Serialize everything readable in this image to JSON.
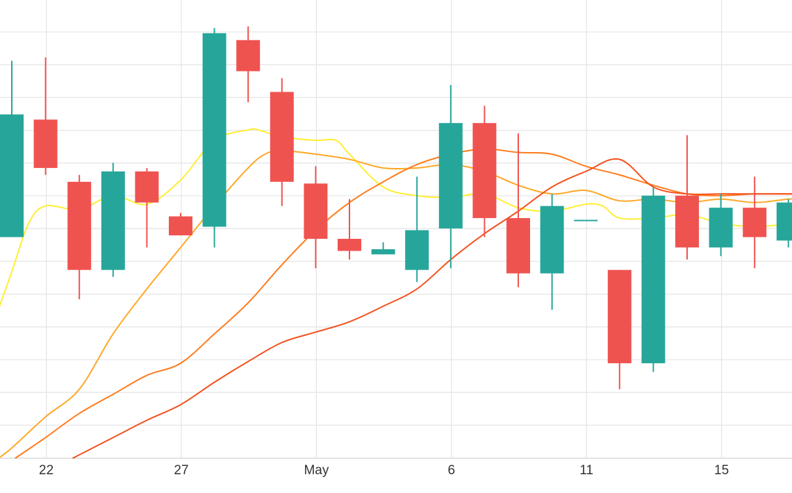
{
  "chart_data": {
    "type": "candlestick",
    "title": "",
    "xlabel": "",
    "ylabel": "",
    "grid": true,
    "x_ticks": [
      {
        "label": "22",
        "index": 1
      },
      {
        "label": "27",
        "index": 5
      },
      {
        "label": "May",
        "index": 9
      },
      {
        "label": "6",
        "index": 13
      },
      {
        "label": "11",
        "index": 17
      },
      {
        "label": "15",
        "index": 21
      }
    ],
    "y_range": [
      1.0,
      14.2
    ],
    "colors": {
      "up": "#26a69a",
      "down": "#ef5350",
      "grid": "#e6e6e6",
      "ma_fast": "#ffee33",
      "ma_mid": "#ffa726",
      "ma_slow": "#ff7b1c",
      "ma_long": "#f4511e"
    },
    "candles": [
      {
        "i": 0,
        "open": 7.4,
        "close": 10.95,
        "high": 12.5,
        "low": 7.4
      },
      {
        "i": 1,
        "open": 10.8,
        "close": 9.4,
        "high": 12.6,
        "low": 9.2
      },
      {
        "i": 2,
        "open": 9.0,
        "close": 6.45,
        "high": 9.2,
        "low": 5.6
      },
      {
        "i": 3,
        "open": 6.45,
        "close": 9.3,
        "high": 9.55,
        "low": 6.25
      },
      {
        "i": 4,
        "open": 9.3,
        "close": 8.4,
        "high": 9.4,
        "low": 7.1
      },
      {
        "i": 5,
        "open": 8.0,
        "close": 7.45,
        "high": 8.1,
        "low": 7.45
      },
      {
        "i": 6,
        "open": 7.7,
        "close": 13.3,
        "high": 13.45,
        "low": 7.1
      },
      {
        "i": 7,
        "open": 13.1,
        "close": 12.2,
        "high": 13.5,
        "low": 11.3
      },
      {
        "i": 8,
        "open": 11.6,
        "close": 9.0,
        "high": 12.0,
        "low": 8.3
      },
      {
        "i": 9,
        "open": 8.95,
        "close": 7.35,
        "high": 9.45,
        "low": 6.5
      },
      {
        "i": 10,
        "open": 7.35,
        "close": 7.0,
        "high": 8.5,
        "low": 6.75
      },
      {
        "i": 11,
        "open": 6.9,
        "close": 7.05,
        "high": 7.25,
        "low": 6.9
      },
      {
        "i": 12,
        "open": 6.45,
        "close": 7.6,
        "high": 9.15,
        "low": 6.1
      },
      {
        "i": 13,
        "open": 7.65,
        "close": 10.7,
        "high": 11.8,
        "low": 6.5
      },
      {
        "i": 14,
        "open": 10.7,
        "close": 7.95,
        "high": 11.2,
        "low": 7.4
      },
      {
        "i": 15,
        "open": 7.95,
        "close": 6.35,
        "high": 10.4,
        "low": 5.95
      },
      {
        "i": 16,
        "open": 6.35,
        "close": 8.3,
        "high": 8.65,
        "low": 5.3
      },
      {
        "i": 17,
        "open": 7.9,
        "close": 7.9,
        "high": 7.9,
        "low": 7.9
      },
      {
        "i": 18,
        "open": 6.45,
        "close": 3.75,
        "high": 6.45,
        "low": 3.0
      },
      {
        "i": 19,
        "open": 3.75,
        "close": 8.6,
        "high": 8.85,
        "low": 3.5
      },
      {
        "i": 20,
        "open": 8.6,
        "close": 7.1,
        "high": 10.35,
        "low": 6.75
      },
      {
        "i": 21,
        "open": 7.1,
        "close": 8.25,
        "high": 8.65,
        "low": 6.85
      },
      {
        "i": 22,
        "open": 8.25,
        "close": 7.4,
        "high": 9.15,
        "low": 6.5
      },
      {
        "i": 23,
        "open": 7.3,
        "close": 8.4,
        "high": 8.5,
        "low": 7.1
      }
    ],
    "series": [
      {
        "key": "ma_fast",
        "x": [
          -0.4,
          0,
          0.5,
          1,
          2,
          3,
          4,
          5,
          6,
          7,
          7.3,
          8,
          9,
          9.6,
          10,
          11,
          12,
          13,
          14,
          15,
          16,
          17,
          17.5,
          18,
          19,
          20,
          21,
          22,
          23,
          23.5
        ],
        "y": [
          5.3,
          6.4,
          7.8,
          8.3,
          8.2,
          8.6,
          8.35,
          9.05,
          10.2,
          10.5,
          10.5,
          10.3,
          10.2,
          10.2,
          9.8,
          8.85,
          8.6,
          8.55,
          8.65,
          8.25,
          8.15,
          8.35,
          8.3,
          7.95,
          7.95,
          8.05,
          7.8,
          7.7,
          7.8,
          8.0
        ]
      },
      {
        "key": "ma_mid",
        "x": [
          -0.4,
          0,
          1,
          2,
          3,
          4,
          5,
          6,
          7,
          7.5,
          8,
          9,
          10,
          11,
          12,
          13,
          14,
          15,
          16,
          17,
          18,
          19,
          20,
          21,
          22,
          23,
          23.5
        ],
        "y": [
          1.0,
          1.3,
          2.2,
          3.0,
          4.6,
          5.9,
          7.1,
          8.3,
          9.4,
          9.8,
          9.9,
          9.8,
          9.65,
          9.4,
          9.4,
          9.5,
          9.3,
          8.9,
          8.65,
          8.75,
          8.45,
          8.5,
          8.4,
          8.5,
          8.4,
          8.5,
          8.5
        ]
      },
      {
        "key": "ma_slow",
        "x": [
          0.1,
          1,
          2,
          3,
          4,
          5,
          6,
          7,
          8,
          9,
          10,
          11,
          12,
          13,
          14,
          15,
          16,
          17,
          18,
          19,
          20,
          21,
          22,
          23,
          23.5
        ],
        "y": [
          1.0,
          1.6,
          2.3,
          2.85,
          3.4,
          3.75,
          4.6,
          5.5,
          6.6,
          7.6,
          8.4,
          9.0,
          9.5,
          9.8,
          9.95,
          9.85,
          9.8,
          9.45,
          9.2,
          8.9,
          8.65,
          8.6,
          8.65,
          8.65,
          8.65
        ]
      },
      {
        "key": "ma_long",
        "x": [
          1.8,
          2,
          3,
          4,
          5,
          6,
          7,
          8,
          9,
          10,
          11,
          12,
          13,
          14,
          15,
          16,
          17,
          18,
          19,
          20,
          21,
          22,
          23,
          23.5
        ],
        "y": [
          1.0,
          1.1,
          1.6,
          2.1,
          2.55,
          3.2,
          3.8,
          4.35,
          4.65,
          4.95,
          5.4,
          5.9,
          6.75,
          7.5,
          8.15,
          8.85,
          9.3,
          9.65,
          8.85,
          8.65,
          8.65,
          8.65,
          8.65,
          8.65
        ]
      }
    ]
  }
}
